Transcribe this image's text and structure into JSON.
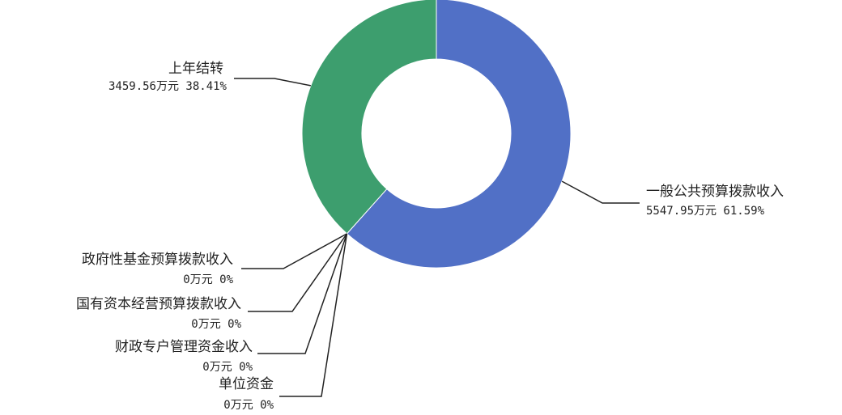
{
  "chart_data": {
    "type": "pie",
    "variant": "donut",
    "title": "",
    "unit": "万元",
    "legend": "none",
    "colors": {
      "一般公共预算拨款收入": "#5170c6",
      "上年结转": "#3d9e6e"
    },
    "slices": [
      {
        "name": "一般公共预算拨款收入",
        "value": 5547.95,
        "percent": 61.59,
        "value_text": "5547.95万元 61.59%"
      },
      {
        "name": "政府性基金预算拨款收入",
        "value": 0,
        "percent": 0,
        "value_text": "0万元 0%"
      },
      {
        "name": "国有资本经营预算拨款收入",
        "value": 0,
        "percent": 0,
        "value_text": "0万元 0%"
      },
      {
        "name": "财政专户管理资金收入",
        "value": 0,
        "percent": 0,
        "value_text": "0万元 0%"
      },
      {
        "name": "单位资金",
        "value": 0,
        "percent": 0,
        "value_text": "0万元 0%"
      },
      {
        "name": "上年结转",
        "value": 3459.56,
        "percent": 38.41,
        "value_text": "3459.56万元 38.41%"
      }
    ]
  }
}
